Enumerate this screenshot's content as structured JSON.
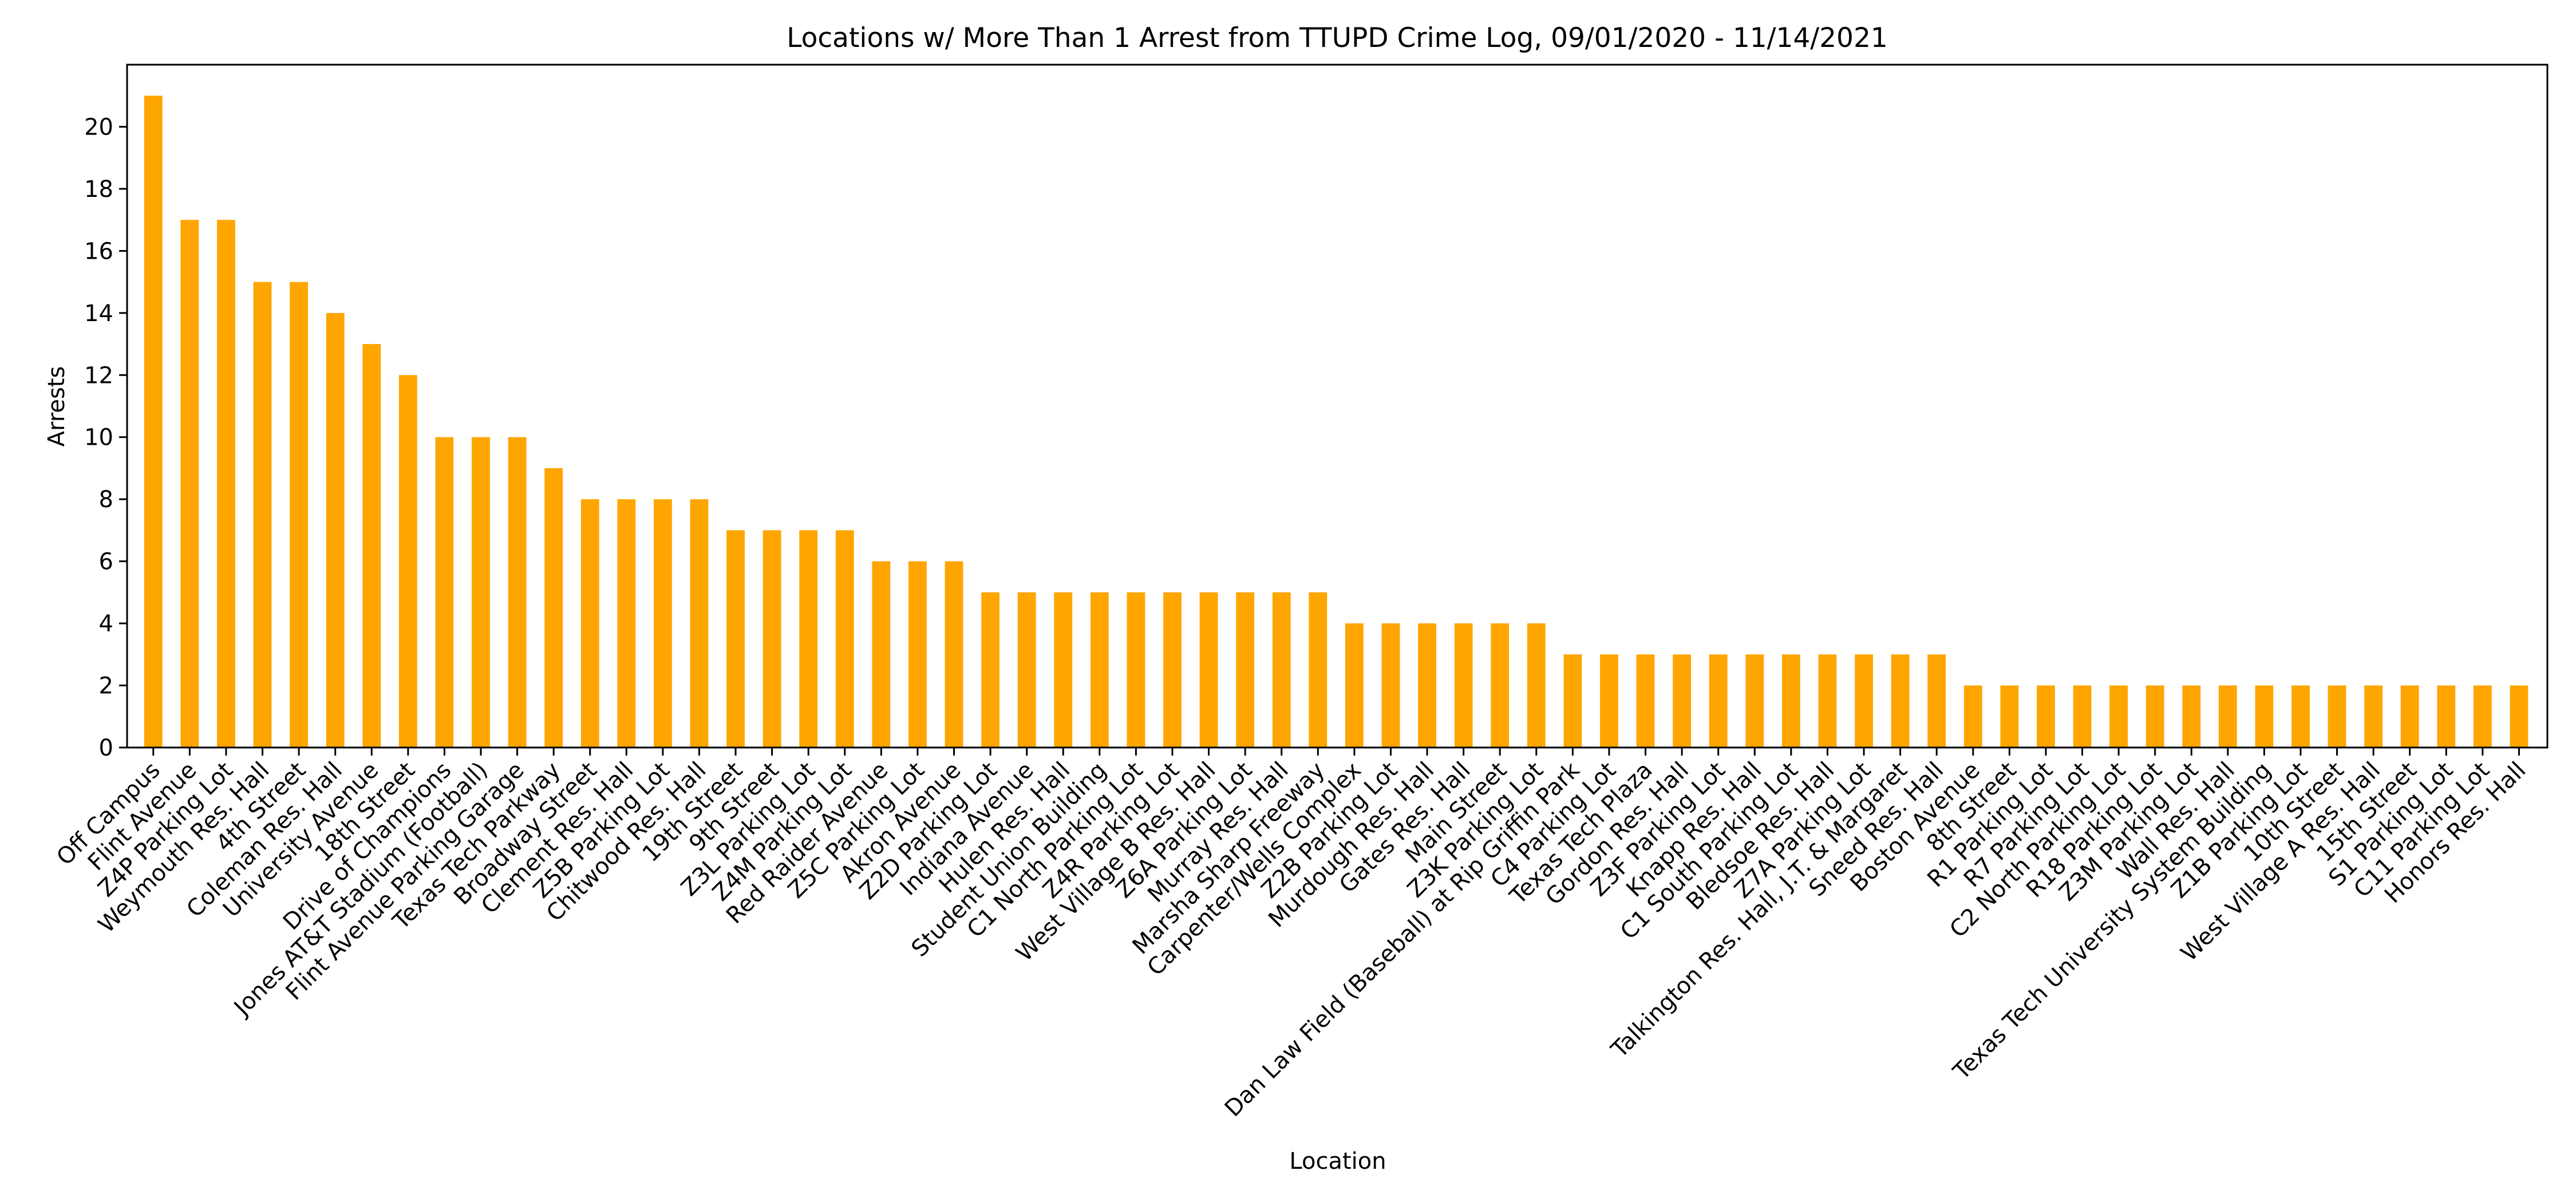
{
  "chart_data": {
    "type": "bar",
    "title": "Locations w/ More Than 1 Arrest from TTUPD Crime Log, 09/01/2020 - 11/14/2021",
    "xlabel": "Location",
    "ylabel": "Arrests",
    "ylim": [
      0,
      22
    ],
    "yticks": [
      0,
      2,
      4,
      6,
      8,
      10,
      12,
      14,
      16,
      18,
      20
    ],
    "grid": false,
    "bar_color": "#ffa500",
    "categories": [
      "Off Campus",
      "Flint Avenue",
      "Z4P Parking Lot",
      "Weymouth Res. Hall",
      "4th Street",
      "Coleman Res. Hall",
      "University Avenue",
      "18th Street",
      "Drive of Champions",
      "Jones AT&T Stadium (Football)",
      "Flint Avenue Parking Garage",
      "Texas Tech Parkway",
      "Broadway Street",
      "Clement Res. Hall",
      "Z5B Parking Lot",
      "Chitwood Res. Hall",
      "19th Street",
      "9th Street",
      "Z3L Parking Lot",
      "Z4M Parking Lot",
      "Red Raider Avenue",
      "Z5C Parking Lot",
      "Akron Avenue",
      "Z2D Parking Lot",
      "Indiana Avenue",
      "Hulen Res. Hall",
      "Student Union Building",
      "C1 North Parking Lot",
      "Z4R Parking Lot",
      "West Village B Res. Hall",
      "Z6A Parking Lot",
      "Murray Res. Hall",
      "Marsha Sharp Freeway",
      "Carpenter/Wells Complex",
      "Z2B Parking Lot",
      "Murdough Res. Hall",
      "Gates Res. Hall",
      "Main Street",
      "Z3K Parking Lot",
      "Dan Law Field (Baseball) at Rip Griffin Park",
      "C4 Parking Lot",
      "Texas Tech Plaza",
      "Gordon Res. Hall",
      "Z3F Parking Lot",
      "Knapp Res. Hall",
      "C1 South Parking Lot",
      "Bledsoe Res. Hall",
      "Z7A Parking Lot",
      "Talkington Res. Hall, J.T. & Margaret",
      "Sneed Res. Hall",
      "Boston Avenue",
      "8th Street",
      "R1 Parking Lot",
      "R7 Parking Lot",
      "C2 North Parking Lot",
      "R18 Parking Lot",
      "Z3M Parking Lot",
      "Wall Res. Hall",
      "Texas Tech University System Building",
      "Z1B Parking Lot",
      "10th Street",
      "West Village A Res. Hall",
      "15th Street",
      "S1 Parking Lot",
      "C11 Parking Lot",
      "Honors Res. Hall"
    ],
    "values": [
      21,
      17,
      17,
      15,
      15,
      14,
      13,
      12,
      10,
      10,
      10,
      9,
      8,
      8,
      8,
      8,
      7,
      7,
      7,
      7,
      6,
      6,
      6,
      5,
      5,
      5,
      5,
      5,
      5,
      5,
      5,
      5,
      5,
      4,
      4,
      4,
      4,
      4,
      4,
      3,
      3,
      3,
      3,
      3,
      3,
      3,
      3,
      3,
      3,
      3,
      2,
      2,
      2,
      2,
      2,
      2,
      2,
      2,
      2,
      2,
      2,
      2,
      2,
      2,
      2,
      2
    ]
  }
}
